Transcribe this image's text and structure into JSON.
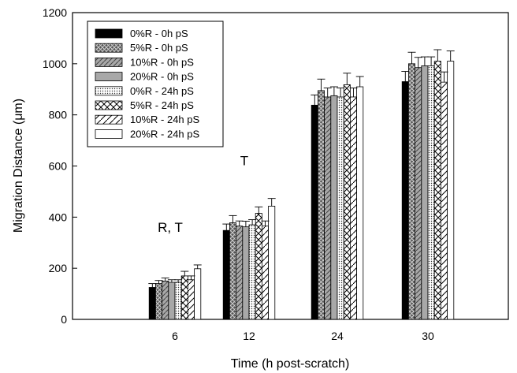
{
  "chart_data": {
    "type": "bar",
    "title": "",
    "xlabel": "Time (h post-scratch)",
    "ylabel": "Migration Distance (μm)",
    "ylim": [
      0,
      1200
    ],
    "yticks": [
      0,
      200,
      400,
      600,
      800,
      1000,
      1200
    ],
    "categories": [
      "6",
      "12",
      "24",
      "30"
    ],
    "grid": false,
    "legend_position": "top-left",
    "series": [
      {
        "name": "0%R - 0h pS",
        "pattern": "solid-black",
        "values": [
          125,
          348,
          838,
          930
        ],
        "errors": [
          15,
          25,
          40,
          40
        ]
      },
      {
        "name": "5%R - 0h pS",
        "pattern": "dense-cross",
        "values": [
          140,
          378,
          895,
          1000
        ],
        "errors": [
          12,
          28,
          45,
          45
        ]
      },
      {
        "name": "10%R - 0h pS",
        "pattern": "gray-diagonal",
        "values": [
          150,
          365,
          870,
          985
        ],
        "errors": [
          12,
          20,
          35,
          40
        ]
      },
      {
        "name": "20%R - 0h pS",
        "pattern": "solid-gray",
        "values": [
          145,
          362,
          875,
          992
        ],
        "errors": [
          10,
          22,
          35,
          35
        ]
      },
      {
        "name": "0%R - 24h pS",
        "pattern": "dots",
        "values": [
          145,
          370,
          870,
          992
        ],
        "errors": [
          10,
          20,
          35,
          35
        ]
      },
      {
        "name": "5%R - 24h pS",
        "pattern": "open-cross",
        "values": [
          170,
          415,
          918,
          1010
        ],
        "errors": [
          18,
          25,
          45,
          45
        ]
      },
      {
        "name": "10%R - 24h pS",
        "pattern": "open-diagonal",
        "values": [
          155,
          365,
          870,
          928
        ],
        "errors": [
          15,
          20,
          35,
          40
        ]
      },
      {
        "name": "20%R - 24h pS",
        "pattern": "white",
        "values": [
          198,
          443,
          910,
          1010
        ],
        "errors": [
          15,
          30,
          40,
          40
        ]
      }
    ],
    "annotations": [
      {
        "text": "R, T",
        "category": "6"
      },
      {
        "text": "T",
        "category": "12"
      }
    ]
  }
}
